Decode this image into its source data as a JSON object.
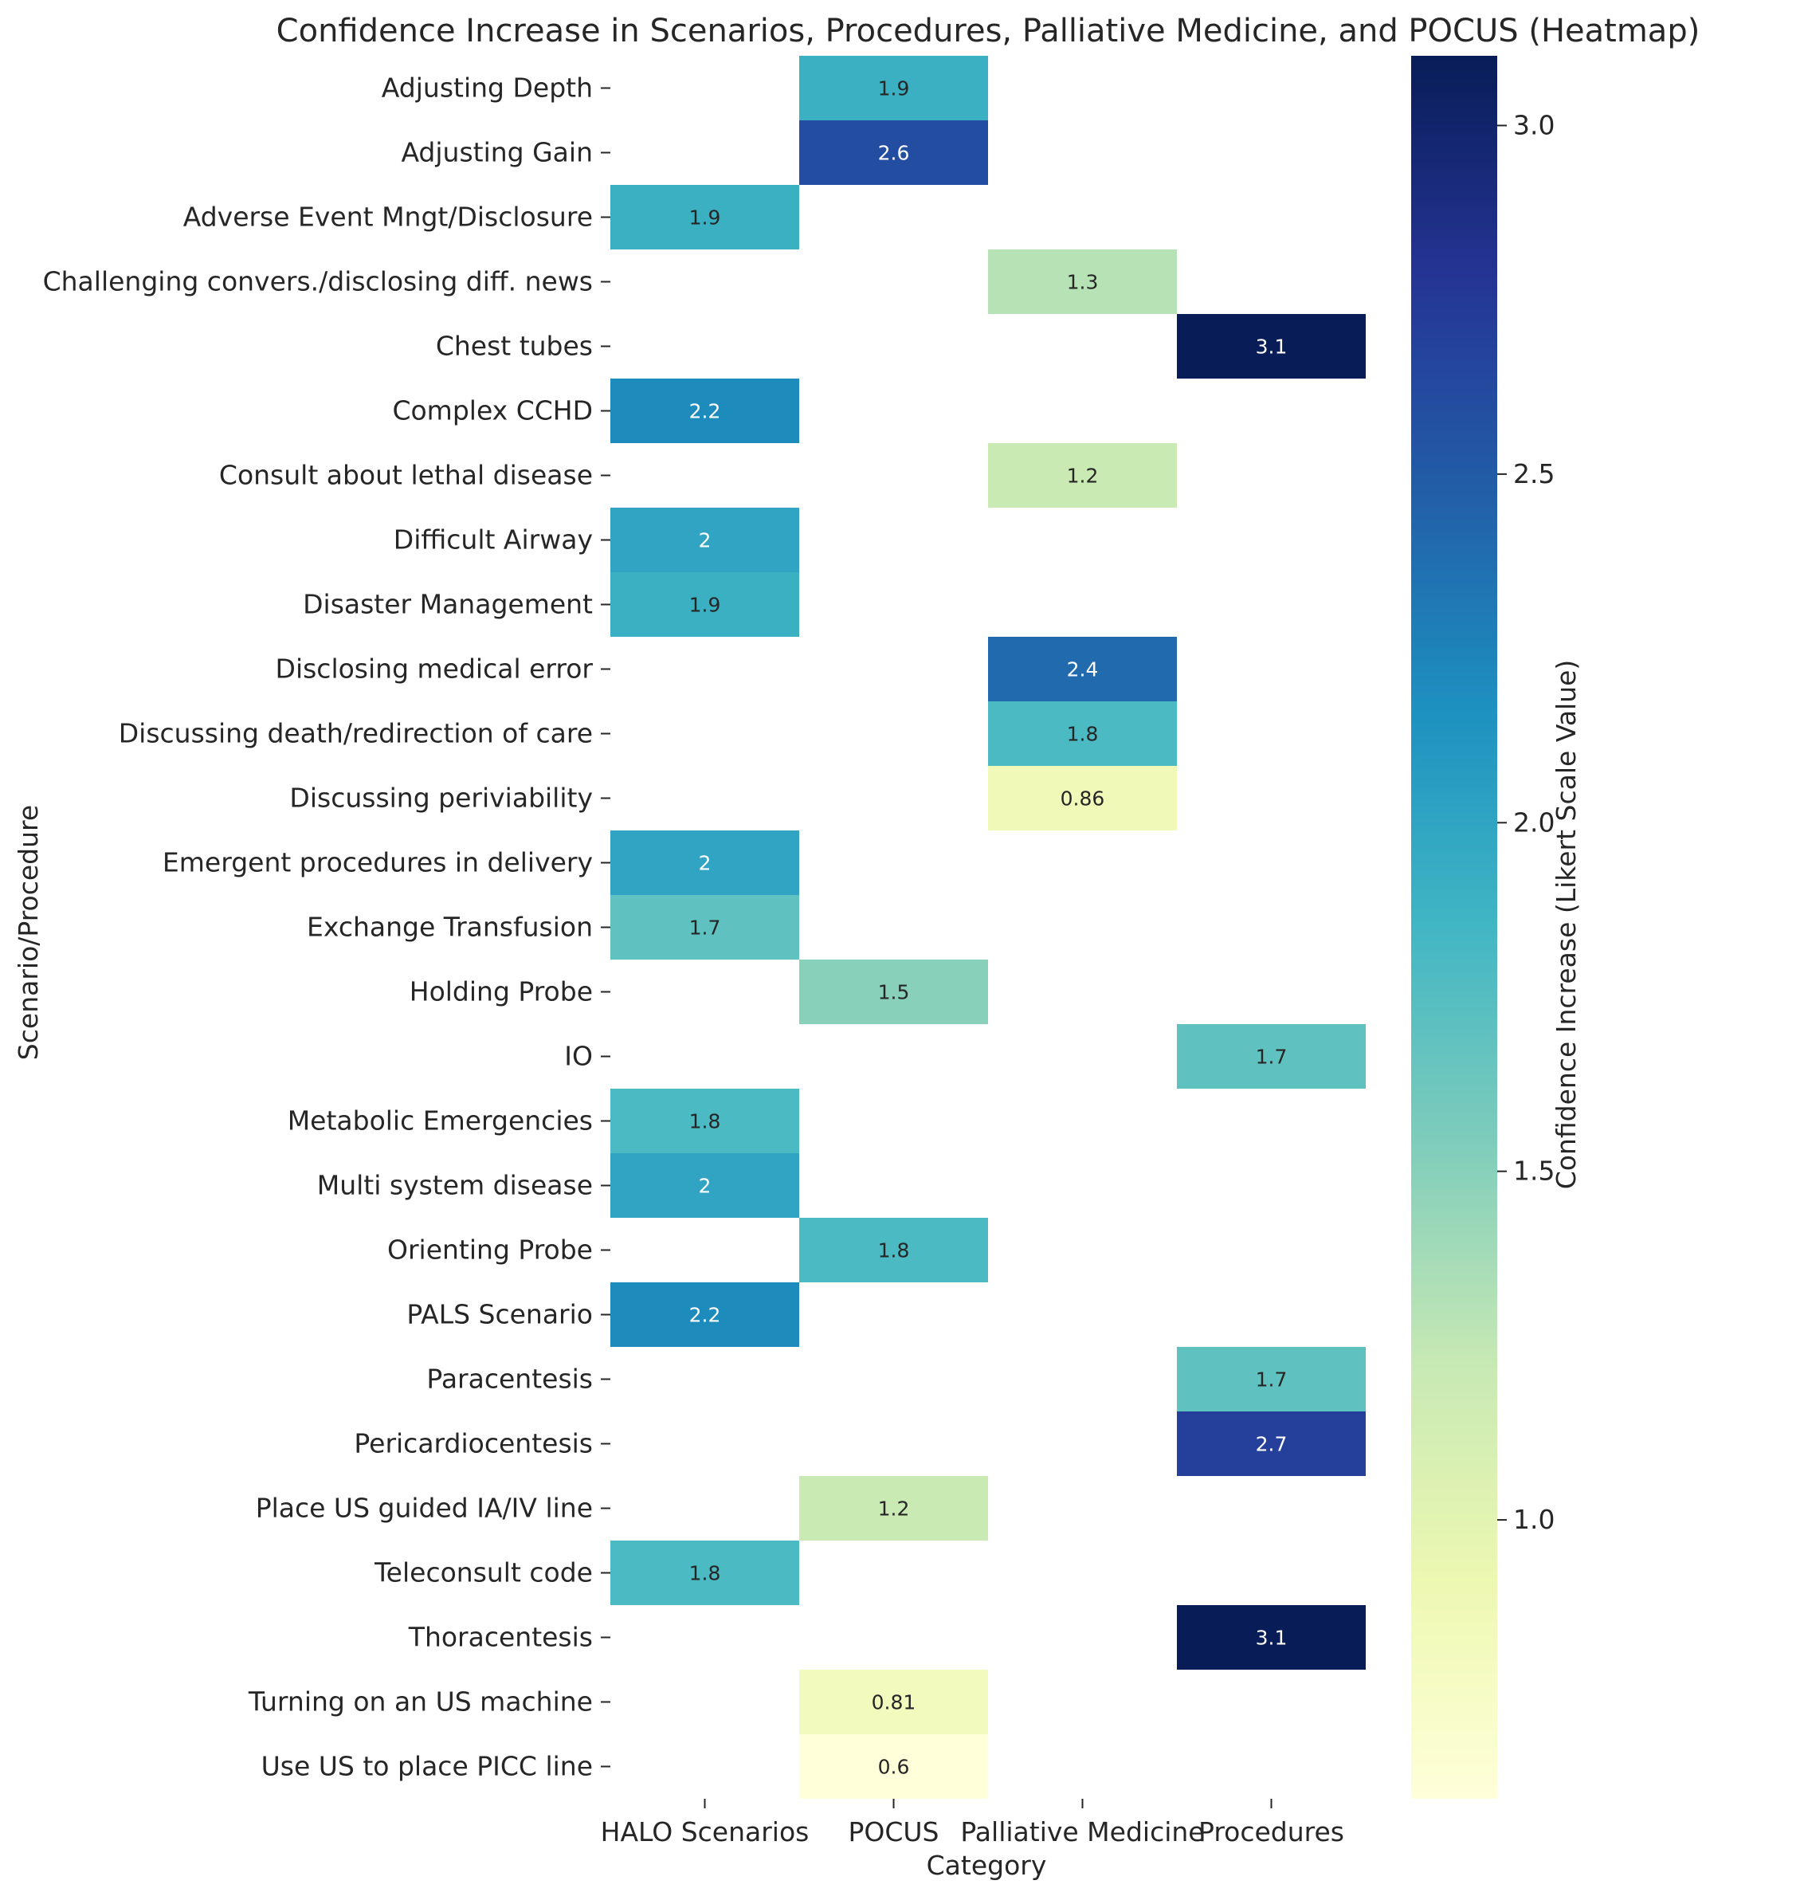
{
  "chart_data": {
    "type": "heatmap",
    "title": "Confidence Increase in Scenarios, Procedures, Palliative Medicine, and POCUS (Heatmap)",
    "xlabel": "Category",
    "ylabel": "Scenario/Procedure",
    "colorbar_label": "Confidence Increase (Likert Scale Value)",
    "colorbar_range": [
      0.6,
      3.1
    ],
    "colorbar_ticks": [
      "1.0",
      "1.5",
      "2.0",
      "2.5",
      "3.0"
    ],
    "colormap": "YlGnBu",
    "columns": [
      "HALO Scenarios",
      "POCUS",
      "Palliative Medicine",
      "Procedures"
    ],
    "rows": [
      "Adjusting Depth",
      "Adjusting Gain",
      "Adverse Event Mngt/Disclosure",
      "Challenging convers./disclosing diff. news",
      "Chest tubes",
      "Complex CCHD",
      "Consult about lethal disease",
      "Difficult Airway",
      "Disaster Management",
      "Disclosing medical error",
      "Discussing death/redirection of care",
      "Discussing periviability",
      "Emergent procedures in delivery",
      "Exchange Transfusion",
      "Holding Probe",
      "IO",
      "Metabolic Emergencies",
      "Multi system disease",
      "Orienting Probe",
      "PALS Scenario",
      "Paracentesis",
      "Pericardiocentesis",
      "Place US guided IA/IV line",
      "Teleconsult code",
      "Thoracentesis",
      "Turning on an US machine",
      "Use US to place PICC line"
    ],
    "values": [
      [
        null,
        1.9,
        null,
        null
      ],
      [
        null,
        2.6,
        null,
        null
      ],
      [
        1.9,
        null,
        null,
        null
      ],
      [
        null,
        null,
        1.3,
        null
      ],
      [
        null,
        null,
        null,
        3.1
      ],
      [
        2.2,
        null,
        null,
        null
      ],
      [
        null,
        null,
        1.2,
        null
      ],
      [
        2.0,
        null,
        null,
        null
      ],
      [
        1.9,
        null,
        null,
        null
      ],
      [
        null,
        null,
        2.4,
        null
      ],
      [
        null,
        null,
        1.8,
        null
      ],
      [
        null,
        null,
        0.86,
        null
      ],
      [
        2.0,
        null,
        null,
        null
      ],
      [
        1.7,
        null,
        null,
        null
      ],
      [
        null,
        1.5,
        null,
        null
      ],
      [
        null,
        null,
        null,
        1.7
      ],
      [
        1.8,
        null,
        null,
        null
      ],
      [
        2.0,
        null,
        null,
        null
      ],
      [
        null,
        1.8,
        null,
        null
      ],
      [
        2.2,
        null,
        null,
        null
      ],
      [
        null,
        null,
        null,
        1.7
      ],
      [
        null,
        null,
        null,
        2.7
      ],
      [
        null,
        1.2,
        null,
        null
      ],
      [
        1.8,
        null,
        null,
        null
      ],
      [
        null,
        null,
        null,
        3.1
      ],
      [
        null,
        0.81,
        null,
        null
      ],
      [
        null,
        0.6,
        null,
        null
      ]
    ],
    "annotations": [
      [
        null,
        "1.9",
        null,
        null
      ],
      [
        null,
        "2.6",
        null,
        null
      ],
      [
        "1.9",
        null,
        null,
        null
      ],
      [
        null,
        null,
        "1.3",
        null
      ],
      [
        null,
        null,
        null,
        "3.1"
      ],
      [
        "2.2",
        null,
        null,
        null
      ],
      [
        null,
        null,
        "1.2",
        null
      ],
      [
        "2",
        null,
        null,
        null
      ],
      [
        "1.9",
        null,
        null,
        null
      ],
      [
        null,
        null,
        "2.4",
        null
      ],
      [
        null,
        null,
        "1.8",
        null
      ],
      [
        null,
        null,
        "0.86",
        null
      ],
      [
        "2",
        null,
        null,
        null
      ],
      [
        "1.7",
        null,
        null,
        null
      ],
      [
        null,
        "1.5",
        null,
        null
      ],
      [
        null,
        null,
        null,
        "1.7"
      ],
      [
        "1.8",
        null,
        null,
        null
      ],
      [
        "2",
        null,
        null,
        null
      ],
      [
        null,
        "1.8",
        null,
        null
      ],
      [
        "2.2",
        null,
        null,
        null
      ],
      [
        null,
        null,
        null,
        "1.7"
      ],
      [
        null,
        null,
        null,
        "2.7"
      ],
      [
        null,
        "1.2",
        null,
        null
      ],
      [
        "1.8",
        null,
        null,
        null
      ],
      [
        null,
        null,
        null,
        "3.1"
      ],
      [
        null,
        "0.81",
        null,
        null
      ],
      [
        null,
        "0.6",
        null,
        null
      ]
    ]
  }
}
